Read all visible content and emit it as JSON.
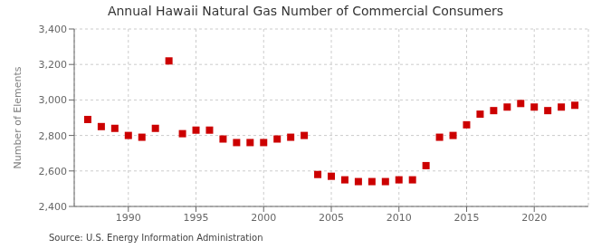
{
  "chart_data": {
    "type": "scatter",
    "title": "Annual Hawaii Natural Gas Number of Commercial Consumers",
    "ylabel": "Number of Elements",
    "annotation": "Source: U.S. Energy Information Administration",
    "x": [
      1987,
      1988,
      1989,
      1990,
      1991,
      1992,
      1993,
      1994,
      1995,
      1996,
      1997,
      1998,
      1999,
      2000,
      2001,
      2002,
      2003,
      2004,
      2005,
      2006,
      2007,
      2008,
      2009,
      2010,
      2011,
      2012,
      2013,
      2014,
      2015,
      2016,
      2017,
      2018,
      2019,
      2020,
      2021,
      2022,
      2023
    ],
    "values": [
      2890,
      2850,
      2840,
      2800,
      2790,
      2840,
      3220,
      2810,
      2830,
      2830,
      2780,
      2760,
      2760,
      2760,
      2780,
      2790,
      2800,
      2580,
      2570,
      2550,
      2540,
      2540,
      2540,
      2550,
      2550,
      2630,
      2790,
      2800,
      2860,
      2920,
      2940,
      2960,
      2980,
      2960,
      2940,
      2960,
      2970
    ],
    "color": "#cc0000",
    "marker": "square",
    "xlim": [
      1986,
      2024
    ],
    "xticks": [
      1990,
      1995,
      2000,
      2005,
      2010,
      2015,
      2020
    ],
    "ylim": [
      2400,
      3400
    ],
    "yticks": [
      {
        "value": 2400,
        "label": "2,400"
      },
      {
        "value": 2600,
        "label": "2,600"
      },
      {
        "value": 2800,
        "label": "2,800"
      },
      {
        "value": 3000,
        "label": "3,000"
      },
      {
        "value": 3200,
        "label": "3,200"
      },
      {
        "value": 3400,
        "label": "3,400"
      }
    ],
    "grid": true
  }
}
